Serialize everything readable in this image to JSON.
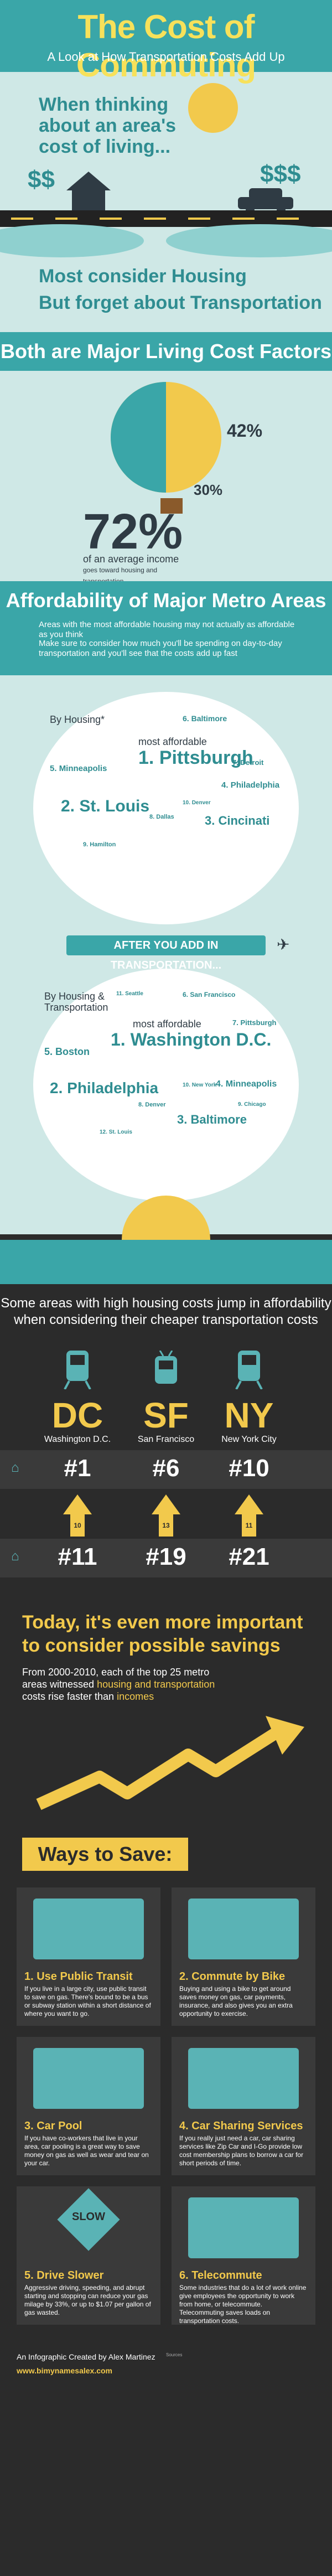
{
  "header": {
    "title": "The Cost of Commuting",
    "subtitle": "A Look at How Transportation Costs Add Up"
  },
  "intro": {
    "line1": "When thinking",
    "line2": "about an area's",
    "line3": "cost of living...",
    "money_left": "$$",
    "money_right": "$$$",
    "consider_housing": "Most consider Housing",
    "forget_transport": "But forget about Transportation"
  },
  "living_costs": {
    "heading": "Both are Major Living Cost Factors",
    "housing_pct": "42%",
    "transport_pct": "30%",
    "total_pct": "72%",
    "total_caption": "of an average income",
    "total_caption2": "goes toward housing and transportation"
  },
  "affordability": {
    "heading": "Affordability of Major Metro Areas",
    "bullet1": "Areas with the most affordable housing may not actually as affordable as you think",
    "bullet2": "Make sure to consider how much you'll be spending on day-to-day transportation and you'll see that the costs add up fast",
    "by_housing_label": "By Housing*",
    "most_affordable_label": "most affordable",
    "housing_list": [
      {
        "rank": "1.",
        "city": "Pittsburgh"
      },
      {
        "rank": "2.",
        "city": "St. Louis"
      },
      {
        "rank": "3.",
        "city": "Cincinati"
      },
      {
        "rank": "4.",
        "city": "Philadelphia"
      },
      {
        "rank": "5.",
        "city": "Minneapolis"
      },
      {
        "rank": "6.",
        "city": "Baltimore"
      },
      {
        "rank": "7.",
        "city": "Detroit"
      },
      {
        "rank": "8.",
        "city": "Dallas"
      },
      {
        "rank": "9.",
        "city": "Hamilton"
      },
      {
        "rank": "10.",
        "city": "Denver"
      }
    ],
    "banner": "AFTER YOU ADD IN TRANSPORTATION...",
    "by_housing_transport_label": "By Housing & Transportation",
    "combined_list": [
      {
        "rank": "1.",
        "city": "Washington D.C."
      },
      {
        "rank": "2.",
        "city": "Philadelphia"
      },
      {
        "rank": "3.",
        "city": "Baltimore"
      },
      {
        "rank": "4.",
        "city": "Minneapolis"
      },
      {
        "rank": "5.",
        "city": "Boston"
      },
      {
        "rank": "6.",
        "city": "San Francisco"
      },
      {
        "rank": "7.",
        "city": "Pittsburgh"
      },
      {
        "rank": "8.",
        "city": "Denver"
      },
      {
        "rank": "9.",
        "city": "Chicago"
      },
      {
        "rank": "10.",
        "city": "New York"
      },
      {
        "rank": "11.",
        "city": "Seattle"
      },
      {
        "rank": "12.",
        "city": "St. Louis"
      }
    ]
  },
  "jump": {
    "heading1": "Some areas with high housing costs jump in affordability",
    "heading2": "when considering their cheaper transportation costs",
    "cities": [
      {
        "abbr": "DC",
        "name": "Washington D.C.",
        "transport_rank": "#1",
        "housing_rank": "#11",
        "jump": "10"
      },
      {
        "abbr": "SF",
        "name": "San Francisco",
        "transport_rank": "#6",
        "housing_rank": "#19",
        "jump": "13"
      },
      {
        "abbr": "NY",
        "name": "New York City",
        "transport_rank": "#10",
        "housing_rank": "#21",
        "jump": "11"
      }
    ]
  },
  "today": {
    "line1": "Today, it's even more important",
    "line2": "to consider possible savings",
    "text_pre": "From 2000-2010, each of the top 25 metro areas witnessed ",
    "text_hl": "housing and transportation",
    "text_mid": " costs rise faster than ",
    "text_hl2": "incomes"
  },
  "ways": {
    "heading": "Ways to Save:",
    "items": [
      {
        "title": "1. Use Public Transit",
        "desc": "If you live in a large city, use public transit to save on gas. There's bound to be a bus or subway station within a short distance of where you want to go."
      },
      {
        "title": "2. Commute by Bike",
        "desc": "Buying and using a bike to get around saves money on gas, car payments, insurance, and also gives you an extra opportunity to exercise."
      },
      {
        "title": "3. Car Pool",
        "desc": "If you have co-workers that live in your area, car pooling is a great way to save money on gas as well as wear and tear on your car."
      },
      {
        "title": "4. Car Sharing Services",
        "desc": "If you really just need a car, car sharing services like Zip Car and I-Go provide low cost membership plans to borrow a car for short periods of time."
      },
      {
        "title": "5. Drive Slower",
        "desc": "Aggressive driving, speeding, and abrupt starting and stopping can reduce your gas milage by 33%, or up to $1.07 per gallon of gas wasted."
      },
      {
        "title": "6. Telecommute",
        "desc": "Some industries that do a lot of work online give employees the opportunity to work from home, or telecommute. Telecommuting saves loads on transportation costs."
      }
    ],
    "slow_sign": "SLOW"
  },
  "footer": {
    "credit": "An Infographic Created by Alex Martinez",
    "site": "www.bimynamesalex.com",
    "sources_label": "Sources"
  }
}
